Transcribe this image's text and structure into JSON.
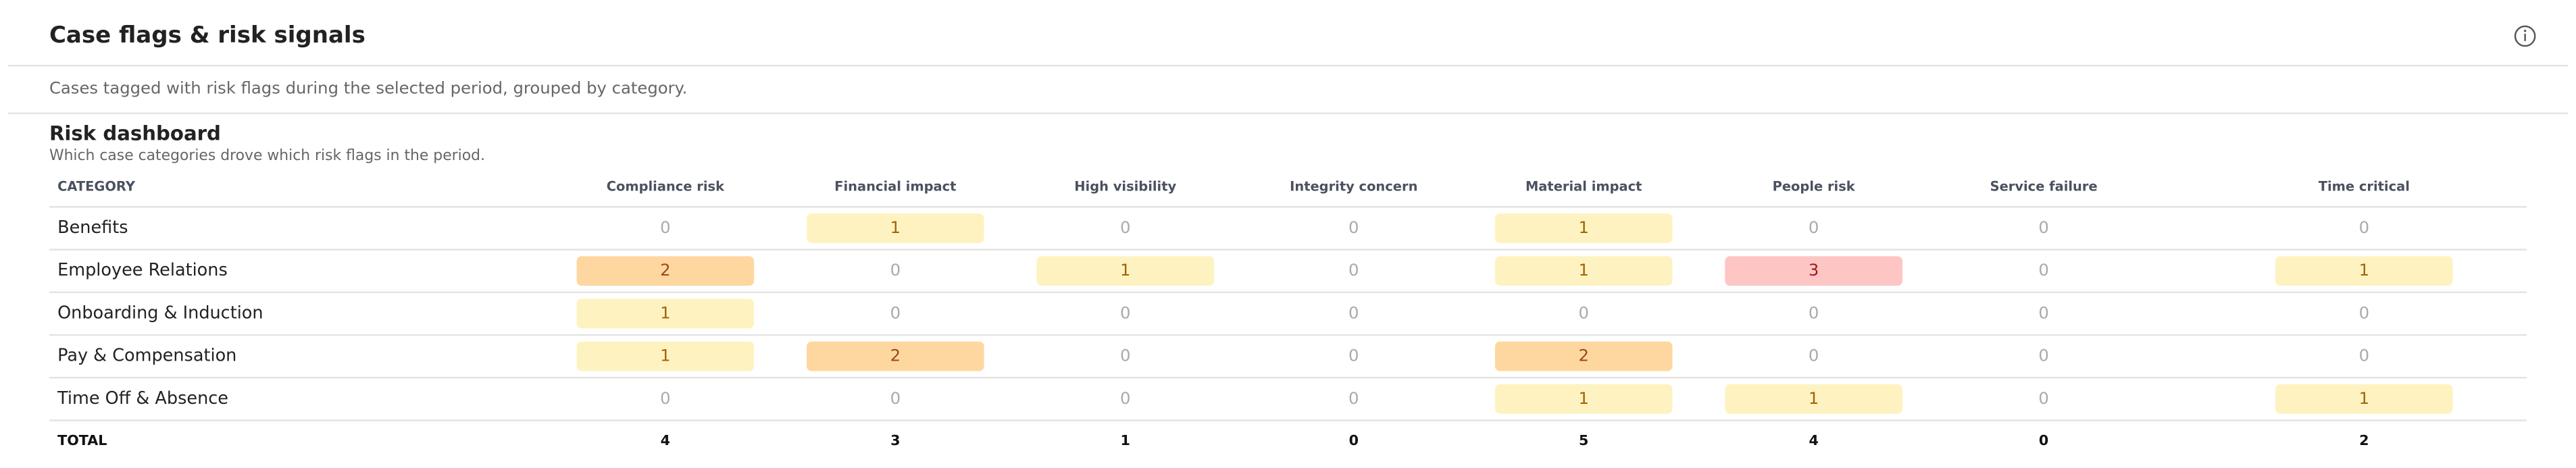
{
  "header": {
    "title": "Case flags & risk signals",
    "subtitle": "Cases tagged with risk flags during the selected period, grouped by category."
  },
  "section": {
    "title": "Risk dashboard",
    "subtitle": "Which case categories drove which risk flags in the period."
  },
  "table": {
    "columns": [
      "CATEGORY",
      "Compliance risk",
      "Financial impact",
      "High visibility",
      "Integrity concern",
      "Material impact",
      "People risk",
      "Service failure",
      "Time critical"
    ],
    "rows": [
      [
        "Benefits",
        0,
        1,
        0,
        0,
        1,
        0,
        0,
        0
      ],
      [
        "Employee Relations",
        2,
        0,
        1,
        0,
        1,
        3,
        0,
        1
      ],
      [
        "Onboarding & Induction",
        1,
        0,
        0,
        0,
        0,
        0,
        0,
        0
      ],
      [
        "Pay & Compensation",
        1,
        2,
        0,
        0,
        2,
        0,
        0,
        0
      ],
      [
        "Time Off & Absence",
        0,
        0,
        0,
        0,
        1,
        1,
        0,
        1
      ]
    ],
    "totals": [
      "TOTAL",
      4,
      3,
      1,
      0,
      5,
      4,
      0,
      2
    ]
  }
}
